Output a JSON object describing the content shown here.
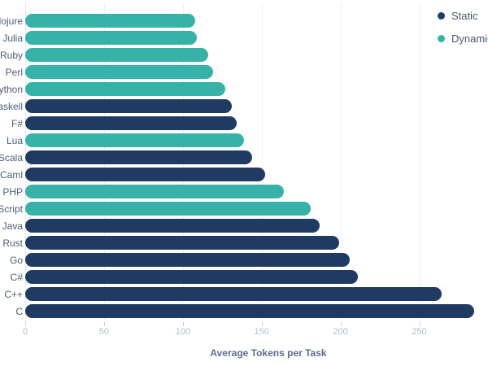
{
  "chart_data": {
    "type": "bar",
    "orientation": "horizontal",
    "title": "",
    "xlabel": "Average Tokens per Task",
    "categories": [
      "Clojure",
      "Julia",
      "Ruby",
      "Perl",
      "Python",
      "Haskell",
      "F#",
      "Lua",
      "Scala",
      "OCaml",
      "PHP",
      "JavaScript",
      "Java",
      "Rust",
      "Go",
      "C#",
      "C++",
      "C"
    ],
    "values": [
      108,
      109,
      116,
      119,
      127,
      131,
      134,
      139,
      144,
      152,
      164,
      181,
      187,
      199,
      206,
      211,
      264,
      285
    ],
    "groups": [
      "Dynamic",
      "Dynamic",
      "Dynamic",
      "Dynamic",
      "Dynamic",
      "Static",
      "Static",
      "Dynamic",
      "Static",
      "Static",
      "Dynamic",
      "Dynamic",
      "Static",
      "Static",
      "Static",
      "Static",
      "Static",
      "Static"
    ],
    "xticks": [
      0,
      50,
      100,
      150,
      200,
      250
    ],
    "xlim": [
      0,
      293
    ],
    "grid": "vertical",
    "legend_position": "top-right",
    "legend": [
      {
        "label": "Static",
        "color": "#203b63"
      },
      {
        "label": "Dynamic",
        "color": "#36b2a8"
      }
    ]
  }
}
